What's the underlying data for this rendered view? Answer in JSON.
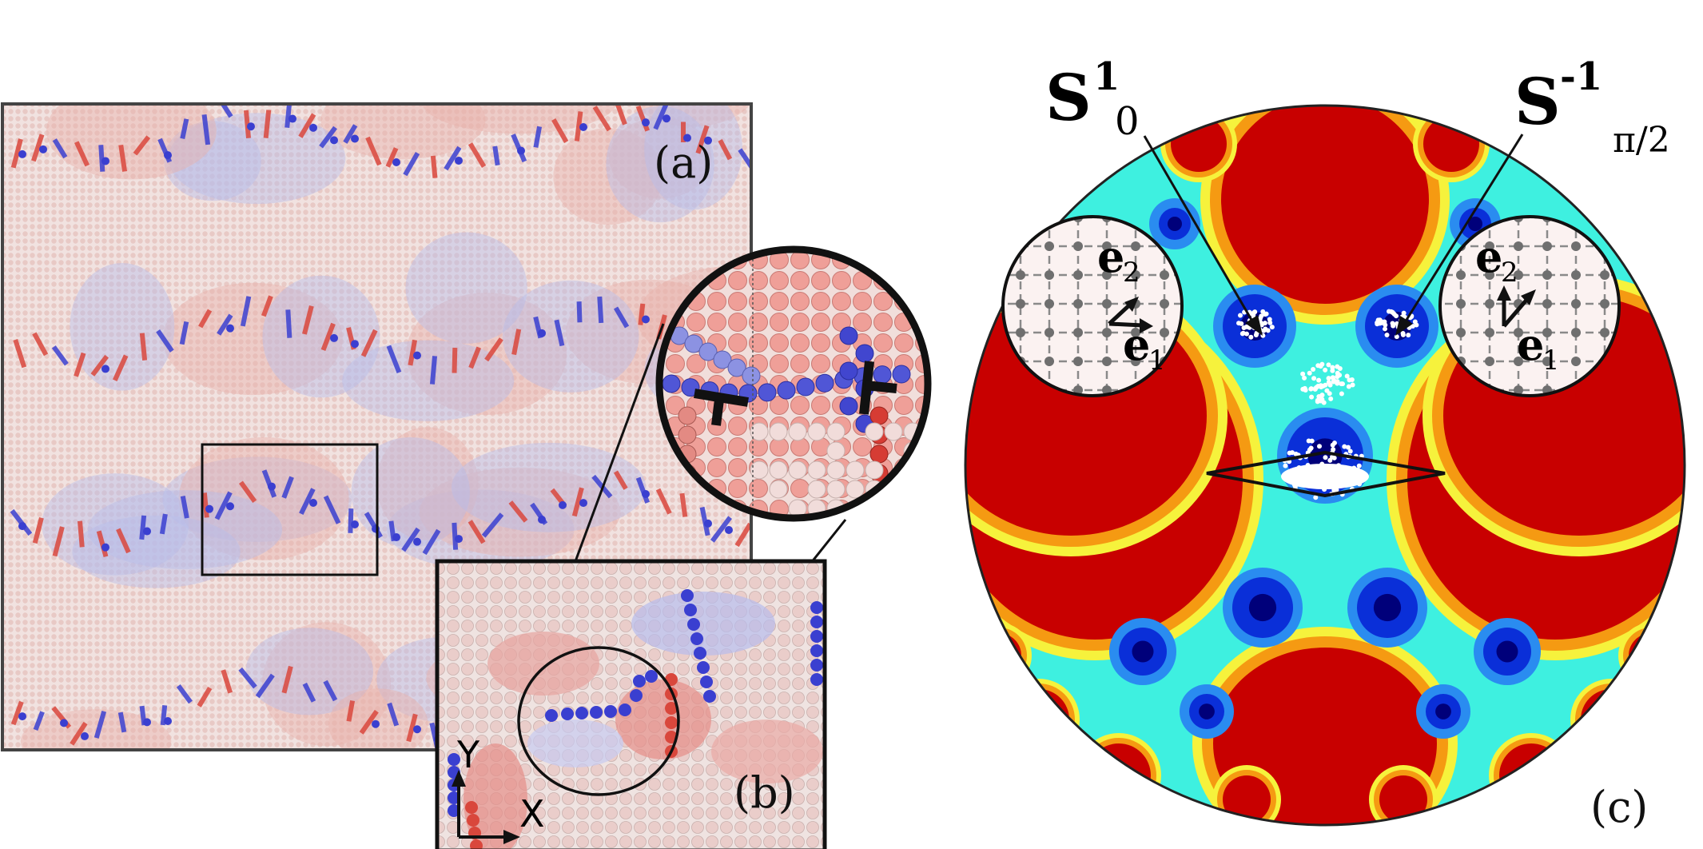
{
  "figure": {
    "panel_a": {
      "label": "(a)"
    },
    "panel_b": {
      "label": "(b)",
      "axis_x": "X",
      "axis_y": "Y"
    },
    "panel_c": {
      "label": "(c)",
      "left_annotation": {
        "main": "S",
        "sup": "1",
        "sub": "0"
      },
      "right_annotation": {
        "main": "S",
        "sup": "-1",
        "sub": "π/2"
      },
      "left_inset": {
        "vec1": "e",
        "vec1_sub": "1",
        "vec2": "e",
        "vec2_sub": "2"
      },
      "right_inset": {
        "vec1": "e",
        "vec1_sub": "1",
        "vec2": "e",
        "vec2_sub": "2"
      }
    },
    "colors": {
      "red_atoms": "#d9473c",
      "blue_atoms": "#3a3fd0",
      "pale_red": "#f3d2cf",
      "pale_blue": "#cfd3f0",
      "map_red": "#c80000",
      "map_cyan": "#3ef0e0",
      "map_blue": "#0a2fd8",
      "map_darkblue": "#00007a",
      "map_yellow": "#f6f23c",
      "map_orange": "#f59a12"
    }
  }
}
